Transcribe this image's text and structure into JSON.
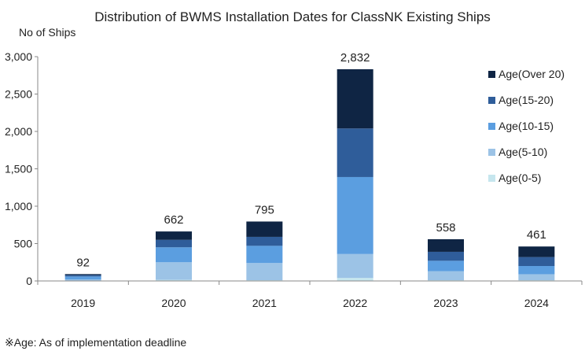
{
  "chart_data": {
    "type": "bar",
    "stacked": true,
    "title": "Distribution of BWMS Installation Dates for ClassNK Existing Ships",
    "ylabel": "No of Ships",
    "xlabel": "",
    "categories": [
      "2019",
      "2020",
      "2021",
      "2022",
      "2023",
      "2024"
    ],
    "ylim": [
      0,
      3000
    ],
    "yticks": [
      0,
      500,
      1000,
      1500,
      2000,
      2500,
      3000
    ],
    "ytick_labels": [
      "0",
      "500",
      "1,000",
      "1,500",
      "2,000",
      "2,500",
      "3,000"
    ],
    "totals": [
      92,
      662,
      795,
      2832,
      558,
      461
    ],
    "total_labels": [
      "92",
      "662",
      "795",
      "2,832",
      "558",
      "461"
    ],
    "series": [
      {
        "name": "Age(0-5)",
        "color": "#c6e6ee",
        "values": [
          2,
          15,
          10,
          40,
          10,
          10
        ]
      },
      {
        "name": "Age(5-10)",
        "color": "#9cc3e6",
        "values": [
          18,
          235,
          230,
          320,
          120,
          80
        ]
      },
      {
        "name": "Age(10-15)",
        "color": "#5b9ee0",
        "values": [
          40,
          200,
          230,
          1030,
          140,
          110
        ]
      },
      {
        "name": "Age(15-20)",
        "color": "#2f5d9a",
        "values": [
          20,
          100,
          120,
          650,
          120,
          120
        ]
      },
      {
        "name": "Age(Over 20)",
        "color": "#0f2544",
        "values": [
          12,
          112,
          205,
          792,
          168,
          141
        ]
      }
    ],
    "legend_position": "right",
    "grid": false,
    "footnote": "※Age: As of implementation deadline"
  }
}
